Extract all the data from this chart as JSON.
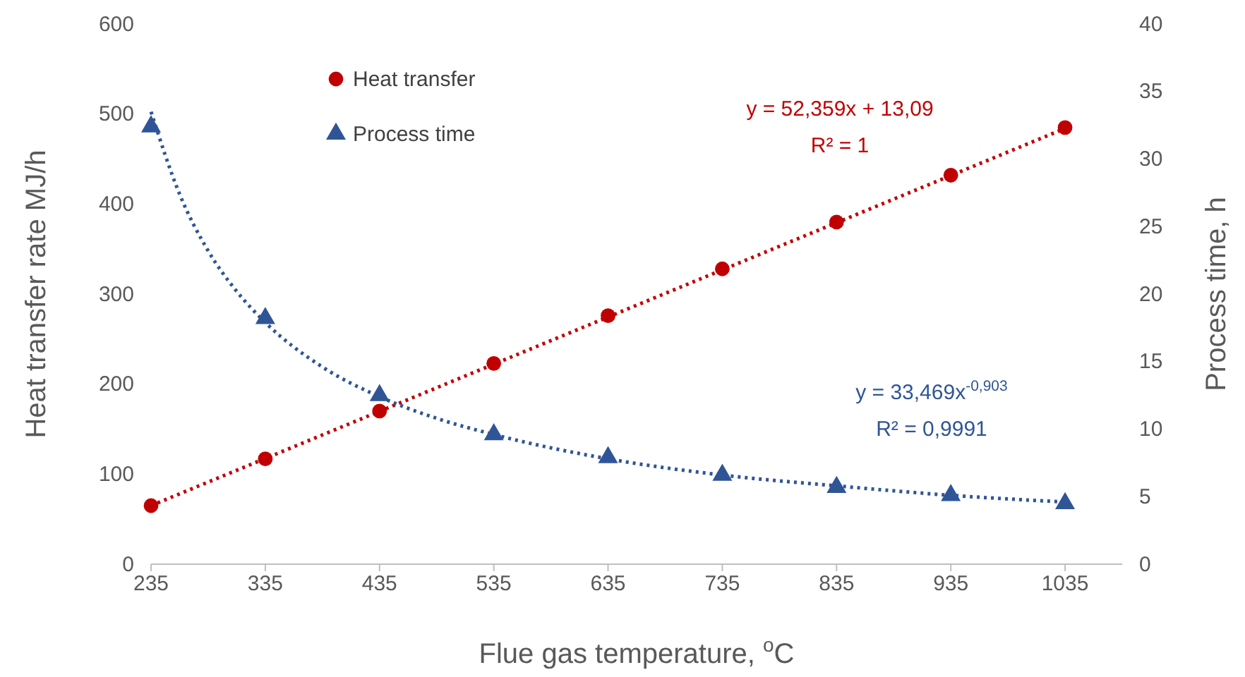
{
  "chart_data": {
    "type": "scatter",
    "xlabel": "Flue gas temperature, $^{o}$C",
    "ylabel": "Heat transfer rate MJ/h",
    "y2label": "Process time, h",
    "xlim": [
      235,
      1085
    ],
    "xticks": [
      235,
      335,
      435,
      535,
      635,
      735,
      835,
      935,
      1035
    ],
    "ylim": [
      0,
      600
    ],
    "yticks": [
      0,
      100,
      200,
      300,
      400,
      500,
      600
    ],
    "y2lim": [
      0,
      40
    ],
    "y2ticks": [
      0,
      5,
      10,
      15,
      20,
      25,
      30,
      35,
      40
    ],
    "legend": "top left",
    "series": [
      {
        "name": "Heat transfer",
        "type": "scatter",
        "marker": "circle",
        "color": "#c00000",
        "x": [
          235,
          335,
          435,
          535,
          635,
          735,
          835,
          935,
          1035
        ],
        "values": [
          65,
          117,
          170,
          223,
          276,
          328,
          380,
          432,
          485
        ]
      },
      {
        "name": "Process time",
        "type": "scatter",
        "marker": "triangle",
        "color": "#2f5597",
        "axis": "y2",
        "x": [
          235,
          335,
          435,
          535,
          635,
          735,
          835,
          935,
          1035
        ],
        "values": [
          32.4,
          18.2,
          12.5,
          9.6,
          7.9,
          6.6,
          5.7,
          5.1,
          4.5
        ]
      },
      {
        "type": "line",
        "marker": "none",
        "line_style": "dotted",
        "color": "#c00000",
        "x": [
          235,
          1035
        ],
        "values": [
          65,
          484
        ]
      },
      {
        "type": "line",
        "marker": "none",
        "line_style": "dotted",
        "color": "#2f5597",
        "axis": "y2",
        "x": [
          235,
          260,
          285,
          310,
          335,
          385,
          435,
          485,
          535,
          635,
          735,
          835,
          935,
          1035
        ],
        "values": [
          33.5,
          27.4,
          23.2,
          20.2,
          17.9,
          14.6,
          12.4,
          10.8,
          9.6,
          7.8,
          6.6,
          5.8,
          5.1,
          4.6
        ]
      }
    ],
    "annotations": [
      "y = 52,359x + 13,09",
      "R² = 1",
      "y = 33,469x$^{-0,903}$",
      "R² = 0,9991"
    ]
  }
}
